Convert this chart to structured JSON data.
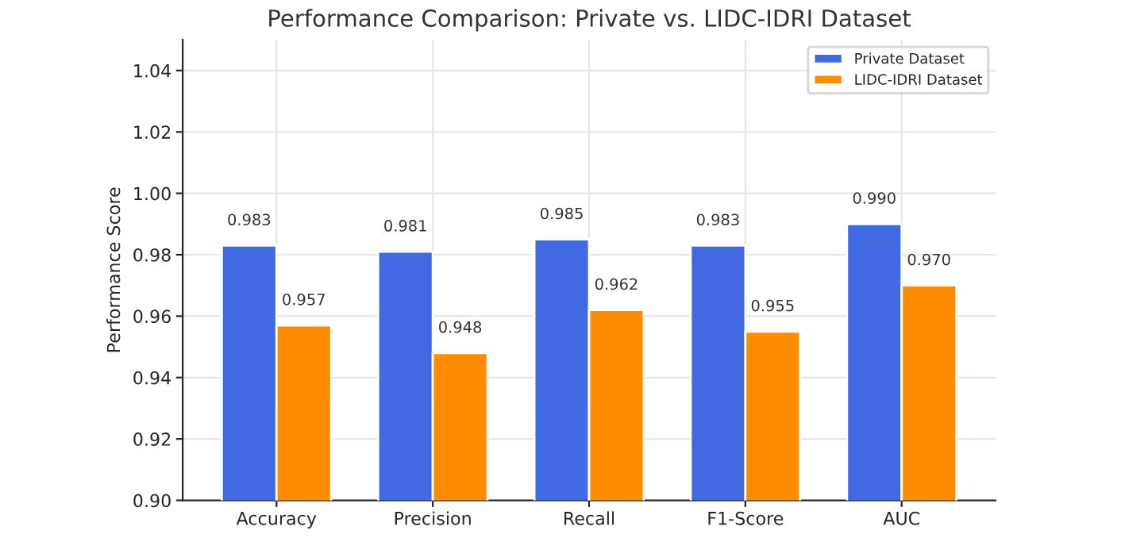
{
  "chart_data": {
    "type": "bar",
    "title": "Performance Comparison: Private vs. LIDC-IDRI Dataset",
    "ylabel": "Performance Score",
    "categories": [
      "Accuracy",
      "Precision",
      "Recall",
      "F1-Score",
      "AUC"
    ],
    "series": [
      {
        "name": "Private Dataset",
        "color": "#4169e1",
        "values": [
          0.983,
          0.981,
          0.985,
          0.983,
          0.99
        ],
        "value_labels": [
          "0.983",
          "0.981",
          "0.985",
          "0.983",
          "0.990"
        ]
      },
      {
        "name": "LIDC-IDRI Dataset",
        "color": "#ff8c00",
        "values": [
          0.957,
          0.948,
          0.962,
          0.955,
          0.97
        ],
        "value_labels": [
          "0.957",
          "0.948",
          "0.962",
          "0.955",
          "0.970"
        ]
      }
    ],
    "ylim": [
      0.9,
      1.05
    ],
    "yticks": [
      {
        "value": 0.9,
        "label": "0.90"
      },
      {
        "value": 0.92,
        "label": "0.92"
      },
      {
        "value": 0.94,
        "label": "0.94"
      },
      {
        "value": 0.96,
        "label": "0.96"
      },
      {
        "value": 0.98,
        "label": "0.98"
      },
      {
        "value": 1.0,
        "label": "1.00"
      },
      {
        "value": 1.02,
        "label": "1.02"
      },
      {
        "value": 1.04,
        "label": "1.04"
      }
    ],
    "grid": true,
    "legend": "top right"
  }
}
